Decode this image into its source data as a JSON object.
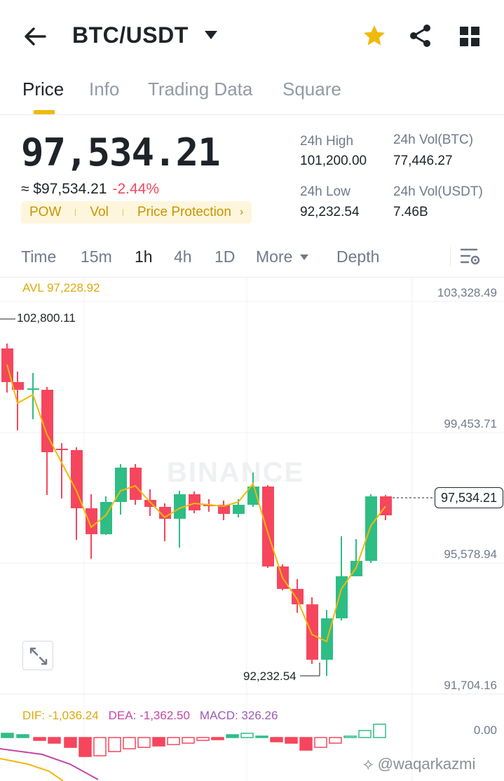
{
  "header": {
    "title": "BTC/USDT",
    "icons": [
      "back-arrow-icon",
      "caret-down-icon",
      "star-icon",
      "share-icon",
      "grid-icon"
    ],
    "star_color": "#f0b90b"
  },
  "tabs": [
    "Price",
    "Info",
    "Trading Data",
    "Square"
  ],
  "price": {
    "last": "97,534.21",
    "fiat": "≈ $97,534.21",
    "change": "-2.44%",
    "tags": [
      "POW",
      "Vol",
      "Price Protection"
    ]
  },
  "stats": {
    "high_label": "24h High",
    "high_value": "101,200.00",
    "low_label": "24h Low",
    "low_value": "92,232.54",
    "vol_btc_label": "24h Vol(BTC)",
    "vol_btc_value": "77,446.27",
    "vol_usdt_label": "24h Vol(USDT)",
    "vol_usdt_value": "7.46B"
  },
  "intervals": [
    "Time",
    "15m",
    "1h",
    "4h",
    "1D",
    "More",
    "Depth"
  ],
  "chart": {
    "avl": "AVL 97,228.92",
    "high_marker": "102,800.11",
    "low_marker": "92,232.54",
    "axis": [
      "103,328.49",
      "99,453.71",
      "95,578.94",
      "91,704.16"
    ],
    "current": "97,534.21",
    "watermark": "BINANCE",
    "colors": {
      "up": "#2ebd85",
      "down": "#f6465d",
      "ma": "#f0b90b"
    }
  },
  "macd": {
    "dif": "DIF: -1,036.24",
    "dea": "DEA: -1,362.50",
    "macd": "MACD: 326.26",
    "zero": "0.00"
  },
  "credit": "@waqarkazmi"
}
